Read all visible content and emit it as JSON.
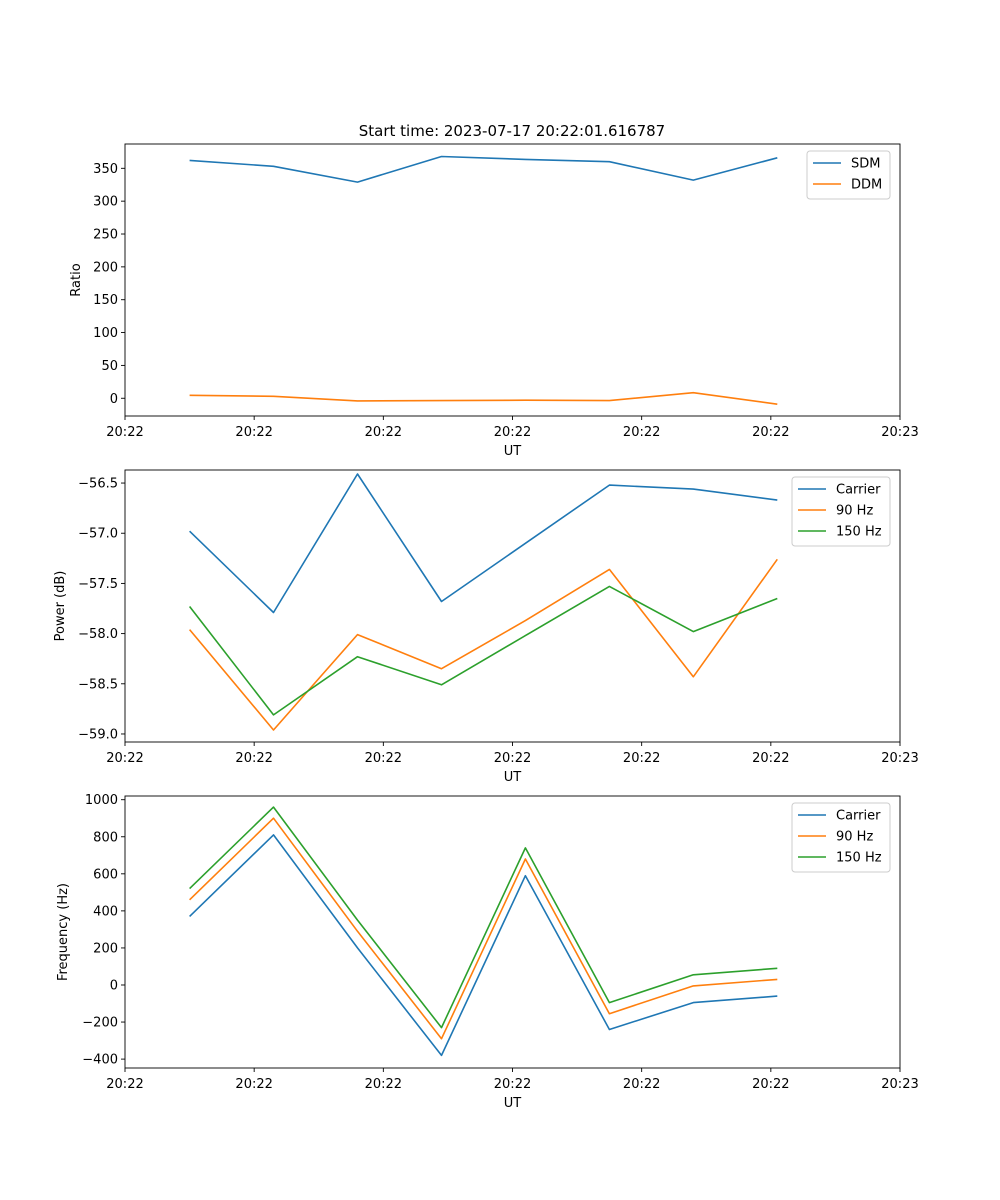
{
  "figure": {
    "title": "Start time: 2023-07-17 20:22:01.616787"
  },
  "colors": {
    "blue": "#1f77b4",
    "orange": "#ff7f0e",
    "green": "#2ca02c"
  },
  "chart_data": [
    {
      "type": "line",
      "title": "Start time: 2023-07-17 20:22:01.616787",
      "xlabel": "UT",
      "ylabel": "Ratio",
      "x": [
        0.5,
        1.15,
        1.8,
        2.45,
        3.1,
        3.75,
        4.4,
        5.05
      ],
      "xlim": [
        0,
        6
      ],
      "xticks": [
        0,
        1,
        2,
        3,
        4,
        5,
        6
      ],
      "xtick_labels": [
        "20:22",
        "20:22",
        "20:22",
        "20:22",
        "20:22",
        "20:22",
        "20:23"
      ],
      "ylim": [
        -27,
        387
      ],
      "yticks": [
        0,
        50,
        100,
        150,
        200,
        250,
        300,
        350
      ],
      "ytick_labels": [
        "0",
        "50",
        "100",
        "150",
        "200",
        "250",
        "300",
        "350"
      ],
      "legend": "top-right",
      "series": [
        {
          "name": "SDM",
          "color": "#1f77b4",
          "values": [
            362,
            353,
            329,
            368,
            363.5,
            360,
            332,
            366
          ]
        },
        {
          "name": "DDM",
          "color": "#ff7f0e",
          "values": [
            4.5,
            3,
            -4,
            -3.5,
            -3,
            -3.5,
            8.5,
            -9
          ]
        }
      ]
    },
    {
      "type": "line",
      "title": "",
      "xlabel": "UT",
      "ylabel": "Power (dB)",
      "x": [
        0.5,
        1.15,
        1.8,
        2.45,
        3.1,
        3.75,
        4.4,
        5.05
      ],
      "xlim": [
        0,
        6
      ],
      "xticks": [
        0,
        1,
        2,
        3,
        4,
        5,
        6
      ],
      "xtick_labels": [
        "20:22",
        "20:22",
        "20:22",
        "20:22",
        "20:22",
        "20:22",
        "20:23"
      ],
      "ylim": [
        -59.08,
        -56.37
      ],
      "yticks": [
        -59.0,
        -58.5,
        -58.0,
        -57.5,
        -57.0,
        -56.5
      ],
      "ytick_labels": [
        "−59.0",
        "−58.5",
        "−58.0",
        "−57.5",
        "−57.0",
        "−56.5"
      ],
      "legend": "top-right",
      "series": [
        {
          "name": "Carrier",
          "color": "#1f77b4",
          "values": [
            -56.98,
            -57.79,
            -56.41,
            -57.68,
            -57.1,
            -56.52,
            -56.56,
            -56.67
          ]
        },
        {
          "name": "90 Hz",
          "color": "#ff7f0e",
          "values": [
            -57.96,
            -58.96,
            -58.01,
            -58.35,
            -57.87,
            -57.36,
            -58.43,
            -57.26
          ]
        },
        {
          "name": "150 Hz",
          "color": "#2ca02c",
          "values": [
            -57.73,
            -58.81,
            -58.23,
            -58.51,
            -58.02,
            -57.53,
            -57.98,
            -57.65
          ]
        }
      ]
    },
    {
      "type": "line",
      "title": "",
      "xlabel": "UT",
      "ylabel": "Frequency (Hz)",
      "x": [
        0.5,
        1.15,
        1.8,
        2.45,
        3.1,
        3.75,
        4.4,
        5.05
      ],
      "xlim": [
        0,
        6
      ],
      "xticks": [
        0,
        1,
        2,
        3,
        4,
        5,
        6
      ],
      "xtick_labels": [
        "20:22",
        "20:22",
        "20:22",
        "20:22",
        "20:22",
        "20:22",
        "20:23"
      ],
      "ylim": [
        -448,
        1020
      ],
      "yticks": [
        -400,
        -200,
        0,
        200,
        400,
        600,
        800,
        1000
      ],
      "ytick_labels": [
        "−400",
        "−200",
        "0",
        "200",
        "400",
        "600",
        "800",
        "1000"
      ],
      "legend": "top-right",
      "series": [
        {
          "name": "Carrier",
          "color": "#1f77b4",
          "values": [
            370,
            810,
            200,
            -380,
            590,
            -240,
            -95,
            -60
          ]
        },
        {
          "name": "90 Hz",
          "color": "#ff7f0e",
          "values": [
            460,
            900,
            290,
            -290,
            680,
            -155,
            -5,
            30
          ]
        },
        {
          "name": "150 Hz",
          "color": "#2ca02c",
          "values": [
            520,
            960,
            350,
            -230,
            740,
            -95,
            55,
            90
          ]
        }
      ]
    }
  ]
}
